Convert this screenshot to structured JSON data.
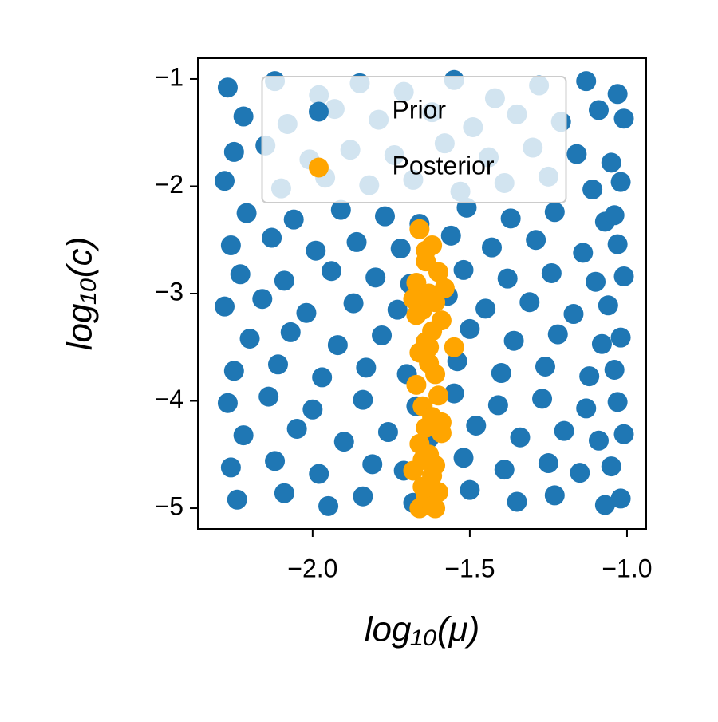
{
  "chart_data": {
    "type": "scatter",
    "x_label": "log₁₀(μ)",
    "y_label": "log₁₀(c)",
    "xlim": [
      -2.365,
      -0.939
    ],
    "ylim": [
      -5.193,
      -0.807
    ],
    "xticks": [
      {
        "value": -2.0,
        "label": "−2.0"
      },
      {
        "value": -1.5,
        "label": "−1.5"
      },
      {
        "value": -1.0,
        "label": "−1.0"
      }
    ],
    "yticks": [
      {
        "value": -1,
        "label": "−1"
      },
      {
        "value": -2,
        "label": "−2"
      },
      {
        "value": -3,
        "label": "−3"
      },
      {
        "value": -4,
        "label": "−4"
      },
      {
        "value": -5,
        "label": "−5"
      }
    ],
    "legend": "upper center",
    "series": [
      {
        "name": "Prior",
        "color": "#1f77b4",
        "x": [
          -2.27,
          -2.12,
          -1.98,
          -1.85,
          -1.71,
          -1.55,
          -1.42,
          -1.28,
          -1.13,
          -1.03,
          -2.22,
          -2.08,
          -1.93,
          -1.79,
          -1.62,
          -1.49,
          -1.35,
          -1.21,
          -1.09,
          -1.01,
          -2.25,
          -2.15,
          -2.01,
          -1.88,
          -1.74,
          -1.58,
          -1.44,
          -1.3,
          -1.16,
          -1.05,
          -2.28,
          -2.1,
          -1.96,
          -1.82,
          -1.68,
          -1.53,
          -1.39,
          -1.25,
          -1.11,
          -1.02,
          -2.21,
          -2.06,
          -1.91,
          -1.77,
          -1.66,
          -1.51,
          -1.37,
          -1.23,
          -1.07,
          -1.04,
          -2.26,
          -2.13,
          -1.99,
          -1.86,
          -1.72,
          -1.56,
          -1.43,
          -1.29,
          -1.14,
          -1.03,
          -2.23,
          -2.09,
          -1.94,
          -1.8,
          -1.69,
          -1.52,
          -1.38,
          -1.24,
          -1.1,
          -1.01,
          -2.28,
          -2.16,
          -2.02,
          -1.87,
          -1.73,
          -1.57,
          -1.45,
          -1.31,
          -1.17,
          -1.06,
          -2.2,
          -2.07,
          -1.92,
          -1.78,
          -1.64,
          -1.5,
          -1.36,
          -1.22,
          -1.08,
          -1.02,
          -2.25,
          -2.11,
          -1.97,
          -1.83,
          -1.7,
          -1.54,
          -1.4,
          -1.26,
          -1.12,
          -1.04,
          -2.27,
          -2.14,
          -2.0,
          -1.84,
          -1.67,
          -1.55,
          -1.41,
          -1.27,
          -1.13,
          -1.03,
          -2.22,
          -2.05,
          -1.9,
          -1.76,
          -1.63,
          -1.48,
          -1.34,
          -1.2,
          -1.09,
          -1.01,
          -2.26,
          -2.12,
          -1.98,
          -1.81,
          -1.71,
          -1.52,
          -1.39,
          -1.25,
          -1.15,
          -1.05,
          -2.24,
          -2.09,
          -1.95,
          -1.84,
          -1.68,
          -1.5,
          -1.35,
          -1.23,
          -1.07,
          -1.02
        ],
        "y": [
          -1.08,
          -1.02,
          -1.15,
          -1.04,
          -1.12,
          -1.01,
          -1.18,
          -1.06,
          -1.02,
          -1.14,
          -1.35,
          -1.42,
          -1.28,
          -1.38,
          -1.31,
          -1.45,
          -1.33,
          -1.4,
          -1.29,
          -1.37,
          -1.68,
          -1.62,
          -1.75,
          -1.66,
          -1.71,
          -1.6,
          -1.73,
          -1.64,
          -1.7,
          -1.78,
          -1.95,
          -2.02,
          -1.92,
          -1.99,
          -1.94,
          -2.05,
          -1.97,
          -1.91,
          -2.03,
          -1.96,
          -2.25,
          -2.31,
          -2.22,
          -2.28,
          -2.35,
          -2.2,
          -2.3,
          -2.24,
          -2.33,
          -2.27,
          -2.55,
          -2.48,
          -2.6,
          -2.52,
          -2.58,
          -2.46,
          -2.57,
          -2.5,
          -2.62,
          -2.54,
          -2.82,
          -2.88,
          -2.79,
          -2.85,
          -2.91,
          -2.78,
          -2.86,
          -2.81,
          -2.89,
          -2.84,
          -3.12,
          -3.05,
          -3.18,
          -3.09,
          -3.15,
          -3.02,
          -3.14,
          -3.08,
          -3.19,
          -3.11,
          -3.42,
          -3.36,
          -3.48,
          -3.39,
          -3.45,
          -3.33,
          -3.44,
          -3.38,
          -3.47,
          -3.41,
          -3.72,
          -3.66,
          -3.78,
          -3.69,
          -3.75,
          -3.63,
          -3.74,
          -3.68,
          -3.77,
          -3.71,
          -4.02,
          -3.96,
          -4.08,
          -3.99,
          -4.05,
          -3.93,
          -4.04,
          -3.98,
          -4.07,
          -4.01,
          -4.32,
          -4.26,
          -4.38,
          -4.29,
          -4.35,
          -4.23,
          -4.34,
          -4.28,
          -4.37,
          -4.31,
          -4.62,
          -4.56,
          -4.68,
          -4.59,
          -4.65,
          -4.53,
          -4.64,
          -4.58,
          -4.67,
          -4.61,
          -4.92,
          -4.86,
          -4.98,
          -4.89,
          -4.95,
          -4.83,
          -4.94,
          -4.88,
          -4.97,
          -4.91
        ]
      },
      {
        "name": "Posterior",
        "color": "#ffa500",
        "x": [
          -1.66,
          -1.62,
          -1.64,
          -1.6,
          -1.67,
          -1.63,
          -1.61,
          -1.65,
          -1.59,
          -1.68,
          -1.62,
          -1.64,
          -1.58,
          -1.66,
          -1.63,
          -1.61,
          -1.67,
          -1.6,
          -1.65,
          -1.62,
          -1.64,
          -1.59,
          -1.66,
          -1.63,
          -1.61,
          -1.68,
          -1.62,
          -1.65,
          -1.6,
          -1.64,
          -1.63,
          -1.66,
          -1.61,
          -1.62,
          -1.65,
          -1.59,
          -1.63,
          -1.67,
          -1.64,
          -1.55
        ],
        "y": [
          -2.4,
          -2.55,
          -2.7,
          -2.8,
          -2.9,
          -3.0,
          -3.08,
          -3.15,
          -3.25,
          -3.05,
          -3.35,
          -3.45,
          -2.95,
          -3.55,
          -3.65,
          -3.75,
          -3.85,
          -3.95,
          -4.05,
          -4.15,
          -4.25,
          -4.3,
          -4.4,
          -4.5,
          -4.6,
          -4.65,
          -4.7,
          -4.8,
          -4.85,
          -4.9,
          -4.95,
          -5.0,
          -5.0,
          -4.98,
          -4.55,
          -4.2,
          -3.5,
          -3.2,
          -2.6,
          -3.5
        ]
      }
    ]
  }
}
